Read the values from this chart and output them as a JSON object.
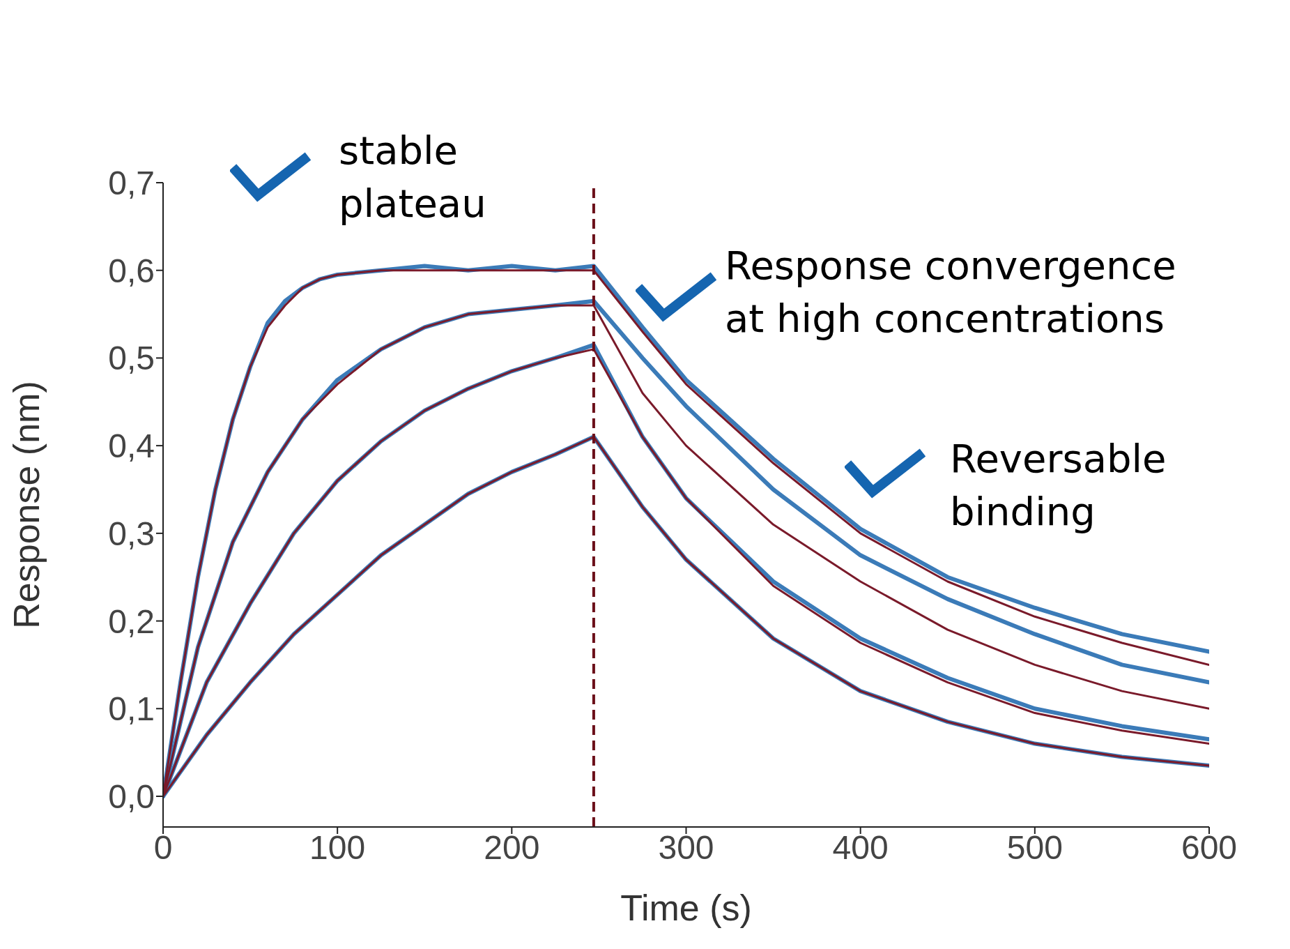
{
  "chart_data": {
    "type": "line",
    "xlabel": "Time (s)",
    "ylabel": "Response (nm)",
    "xlim": [
      0,
      600
    ],
    "xticks": [
      0,
      100,
      200,
      300,
      400,
      500,
      600
    ],
    "ylim": [
      -0.035,
      0.7
    ],
    "yticks": [
      {
        "value": 0,
        "label": "0,0"
      },
      {
        "value": 0.1,
        "label": "0,1"
      },
      {
        "value": 0.2,
        "label": "0,2"
      },
      {
        "value": 0.3,
        "label": "0,3"
      },
      {
        "value": 0.4,
        "label": "0,4"
      },
      {
        "value": 0.5,
        "label": "0,5"
      },
      {
        "value": 0.6,
        "label": "0,6"
      },
      {
        "value": 0.7,
        "label": "0,7"
      }
    ],
    "grid": false,
    "legend": false,
    "ref_lines": [
      {
        "axis": "x",
        "value": 247,
        "color": "#6b0f1a",
        "line_style": "dashed"
      }
    ],
    "annotations": [
      "stable plateau",
      "Response convergence at high concentrations",
      "Reversable binding"
    ],
    "series": [
      {
        "type": "line",
        "color": "#3b7bb8",
        "x": [
          0,
          10,
          20,
          30,
          40,
          50,
          60,
          70,
          80,
          90,
          100,
          125,
          150,
          175,
          200,
          225,
          247,
          275,
          300,
          350,
          400,
          450,
          500,
          550,
          600
        ],
        "values": [
          0,
          0.13,
          0.25,
          0.35,
          0.43,
          0.49,
          0.54,
          0.565,
          0.58,
          0.59,
          0.595,
          0.6,
          0.605,
          0.6,
          0.605,
          0.6,
          0.605,
          0.535,
          0.475,
          0.385,
          0.305,
          0.25,
          0.215,
          0.185,
          0.165
        ]
      },
      {
        "type": "line",
        "color": "#3b7bb8",
        "x": [
          0,
          20,
          40,
          60,
          80,
          100,
          125,
          150,
          175,
          200,
          225,
          247,
          275,
          300,
          350,
          400,
          450,
          500,
          550,
          600
        ],
        "values": [
          0,
          0.17,
          0.29,
          0.37,
          0.43,
          0.475,
          0.51,
          0.535,
          0.55,
          0.555,
          0.56,
          0.565,
          0.5,
          0.445,
          0.35,
          0.275,
          0.225,
          0.185,
          0.15,
          0.13
        ]
      },
      {
        "type": "line",
        "color": "#3b7bb8",
        "x": [
          0,
          25,
          50,
          75,
          100,
          125,
          150,
          175,
          200,
          225,
          247,
          275,
          300,
          350,
          400,
          450,
          500,
          550,
          600
        ],
        "values": [
          0,
          0.13,
          0.22,
          0.3,
          0.36,
          0.405,
          0.44,
          0.465,
          0.485,
          0.5,
          0.515,
          0.41,
          0.34,
          0.245,
          0.18,
          0.135,
          0.1,
          0.08,
          0.065
        ]
      },
      {
        "type": "line",
        "color": "#3b7bb8",
        "x": [
          0,
          25,
          50,
          75,
          100,
          125,
          150,
          175,
          200,
          225,
          247,
          275,
          300,
          350,
          400,
          450,
          500,
          550,
          600
        ],
        "values": [
          0,
          0.07,
          0.13,
          0.185,
          0.23,
          0.275,
          0.31,
          0.345,
          0.37,
          0.39,
          0.41,
          0.33,
          0.27,
          0.18,
          0.12,
          0.085,
          0.06,
          0.045,
          0.035
        ]
      },
      {
        "type": "line",
        "color": "#7a1a2a",
        "x": [
          0,
          10,
          20,
          30,
          40,
          50,
          60,
          70,
          80,
          90,
          100,
          125,
          150,
          200,
          247,
          275,
          300,
          350,
          400,
          450,
          500,
          550,
          600
        ],
        "values": [
          0,
          0.13,
          0.25,
          0.35,
          0.43,
          0.49,
          0.535,
          0.56,
          0.58,
          0.59,
          0.595,
          0.6,
          0.6,
          0.6,
          0.6,
          0.53,
          0.47,
          0.38,
          0.3,
          0.245,
          0.205,
          0.175,
          0.15
        ]
      },
      {
        "type": "line",
        "color": "#7a1a2a",
        "x": [
          0,
          20,
          40,
          60,
          80,
          100,
          125,
          150,
          175,
          200,
          225,
          247,
          275,
          300,
          350,
          400,
          450,
          500,
          550,
          600
        ],
        "values": [
          0,
          0.17,
          0.29,
          0.37,
          0.43,
          0.47,
          0.51,
          0.535,
          0.55,
          0.555,
          0.56,
          0.56,
          0.46,
          0.4,
          0.31,
          0.245,
          0.19,
          0.15,
          0.12,
          0.1
        ]
      },
      {
        "type": "line",
        "color": "#7a1a2a",
        "x": [
          0,
          25,
          50,
          75,
          100,
          125,
          150,
          175,
          200,
          225,
          247,
          275,
          300,
          350,
          400,
          450,
          500,
          550,
          600
        ],
        "values": [
          0,
          0.13,
          0.22,
          0.3,
          0.36,
          0.405,
          0.44,
          0.465,
          0.485,
          0.5,
          0.51,
          0.41,
          0.34,
          0.24,
          0.175,
          0.13,
          0.095,
          0.075,
          0.06
        ]
      },
      {
        "type": "line",
        "color": "#7a1a2a",
        "x": [
          0,
          25,
          50,
          75,
          100,
          125,
          150,
          175,
          200,
          225,
          247,
          275,
          300,
          350,
          400,
          450,
          500,
          550,
          600
        ],
        "values": [
          0,
          0.07,
          0.13,
          0.185,
          0.23,
          0.275,
          0.31,
          0.345,
          0.37,
          0.39,
          0.41,
          0.33,
          0.27,
          0.18,
          0.12,
          0.085,
          0.06,
          0.045,
          0.035
        ]
      }
    ]
  }
}
